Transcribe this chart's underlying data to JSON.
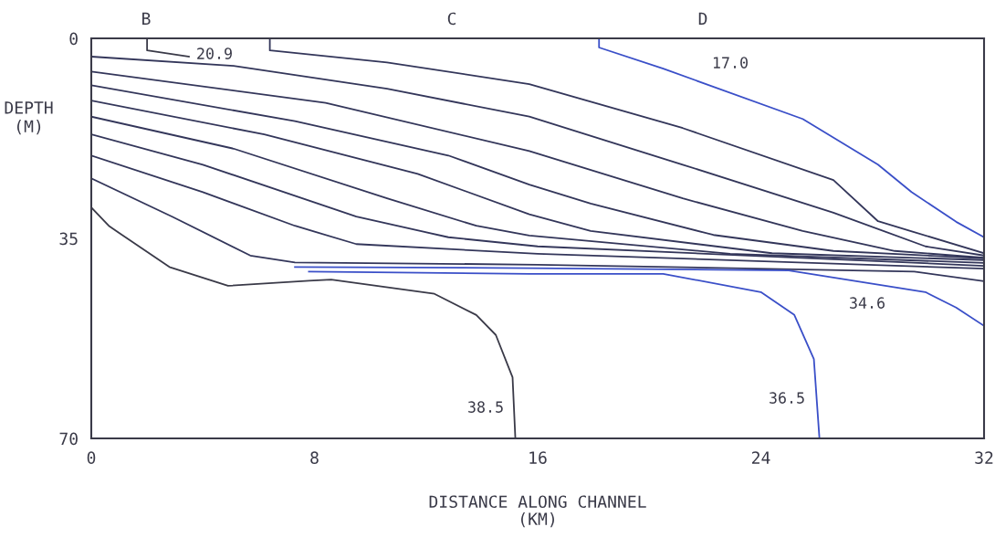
{
  "chart_data": {
    "type": "line",
    "xlabel": "DISTANCE ALONG CHANNEL\n(KM)",
    "ylabel": "DEPTH\n(M)",
    "xlim": [
      0,
      32
    ],
    "xticks": [
      0,
      8,
      16,
      24,
      32
    ],
    "ylim": [
      70,
      0
    ],
    "yticks": [
      0,
      35,
      70
    ],
    "grid": false,
    "legend": false,
    "marker": "none",
    "line_style": "solid",
    "series": [
      {
        "color": "#3a3a48",
        "x": [
          2.0,
          2.0,
          3.5
        ],
        "values": [
          0,
          2.1,
          3.2
        ]
      },
      {
        "color": "#33365a",
        "x": [
          6.4,
          6.4,
          10.6,
          15.7,
          21.2,
          26.6,
          28.2,
          32
        ],
        "values": [
          0,
          2.1,
          4.2,
          8.0,
          15.7,
          24.8,
          32.0,
          37.6
        ]
      },
      {
        "color": "#33365a",
        "x": [
          0,
          5.1,
          10.6,
          15.7,
          21.2,
          26.6,
          29.9,
          32
        ],
        "values": [
          3.2,
          4.8,
          8.8,
          13.7,
          22.1,
          30.5,
          36.4,
          38.0
        ]
      },
      {
        "color": "#33365a",
        "x": [
          0,
          8.4,
          15.7,
          21.2,
          25.5,
          28.8,
          32
        ],
        "values": [
          5.8,
          11.3,
          19.7,
          28.0,
          33.7,
          37.2,
          38.4
        ]
      },
      {
        "color": "#33365a",
        "x": [
          0,
          7.3,
          12.8,
          15.7,
          17.9,
          22.3,
          26.6,
          32
        ],
        "values": [
          8.2,
          14.5,
          20.5,
          25.6,
          28.9,
          34.4,
          37.2,
          38.5
        ]
      },
      {
        "color": "#33365a",
        "x": [
          0,
          6.2,
          11.7,
          15.7,
          17.9,
          24.4,
          32
        ],
        "values": [
          10.9,
          16.8,
          23.7,
          30.8,
          33.7,
          37.6,
          38.8
        ]
      },
      {
        "color": "#33365a",
        "x": [
          0,
          5.1,
          10.6,
          13.8,
          15.7,
          22.9,
          32
        ],
        "values": [
          13.7,
          19.3,
          28.0,
          32.8,
          34.5,
          37.7,
          39.3
        ]
      },
      {
        "color": "#33365a",
        "x": [
          0,
          4.0,
          9.5,
          12.8,
          16.0,
          32
        ],
        "values": [
          16.8,
          22.1,
          31.2,
          34.8,
          36.4,
          39.8
        ]
      },
      {
        "color": "#33365a",
        "x": [
          0,
          4.0,
          7.3,
          9.5,
          16.0,
          32
        ],
        "values": [
          20.5,
          26.9,
          32.8,
          36.0,
          37.7,
          40.3
        ]
      },
      {
        "color": "#33365a",
        "x": [
          0,
          2.9,
          5.7,
          7.3,
          16.0,
          29.5,
          32
        ],
        "values": [
          24.5,
          31.2,
          38.0,
          39.2,
          39.6,
          40.8,
          42.5
        ]
      },
      {
        "color": "#3a4fc8",
        "x": [
          7.3,
          15.7,
          25.0,
          29.9,
          31.0,
          32
        ],
        "values": [
          40.0,
          40.2,
          40.6,
          44.4,
          47.1,
          50.3
        ]
      },
      {
        "color": "#3a4fc8",
        "x": [
          7.8,
          15.7,
          20.5,
          24.0,
          25.2,
          25.9,
          26.1
        ],
        "values": [
          40.8,
          41.2,
          41.2,
          44.4,
          48.4,
          56.1,
          70
        ]
      },
      {
        "color": "#3a3a48",
        "x": [
          0,
          0.65,
          2.8,
          4.9,
          7.8,
          8.6,
          12.3,
          13.8,
          14.5,
          15.1,
          15.2
        ],
        "values": [
          29.6,
          32.9,
          40.0,
          43.3,
          42.4,
          42.2,
          44.7,
          48.4,
          51.9,
          59.3,
          70
        ]
      },
      {
        "color": "#3a4fc8",
        "x": [
          18.2,
          18.2,
          20.5,
          25.5,
          28.2,
          29.4,
          31.0,
          32
        ],
        "values": [
          0,
          1.6,
          5.3,
          14.1,
          22.1,
          26.9,
          32.1,
          34.8
        ]
      }
    ],
    "annotations": [
      "20.9",
      "17.0",
      "34.6",
      "36.5",
      "38.5",
      "B",
      "C",
      "D"
    ]
  }
}
